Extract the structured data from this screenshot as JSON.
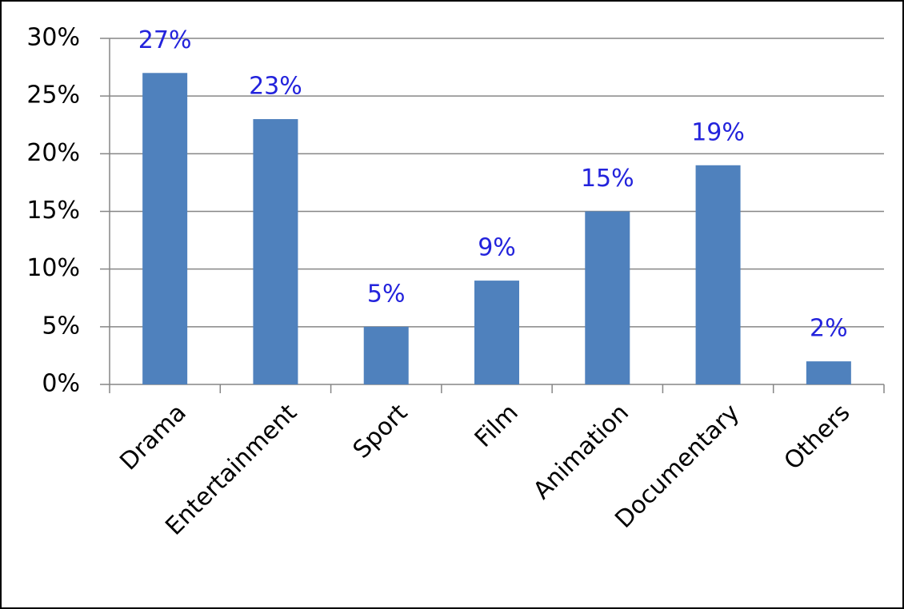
{
  "chart_data": {
    "type": "bar",
    "categories": [
      "Drama",
      "Entertainment",
      "Sport",
      "Film",
      "Animation",
      "Documentary",
      "Others"
    ],
    "values": [
      27,
      23,
      5,
      9,
      15,
      19,
      2
    ],
    "value_labels": [
      "27%",
      "23%",
      "5%",
      "9%",
      "15%",
      "19%",
      "2%"
    ],
    "color": "#4f81bd",
    "ylim": [
      0,
      30
    ],
    "yticks": [
      {
        "value": 0,
        "label": "0%"
      },
      {
        "value": 5,
        "label": "5%"
      },
      {
        "value": 10,
        "label": "10%"
      },
      {
        "value": 15,
        "label": "15%"
      },
      {
        "value": 20,
        "label": "20%"
      },
      {
        "value": 25,
        "label": "25%"
      },
      {
        "value": 30,
        "label": "30%"
      }
    ],
    "grid": true
  }
}
